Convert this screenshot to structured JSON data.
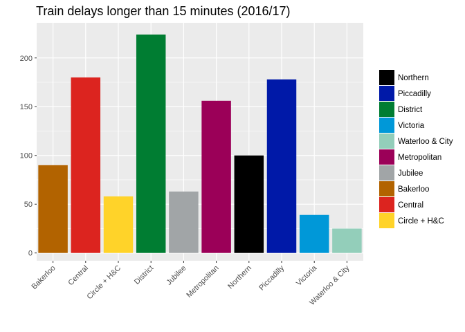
{
  "chart_data": {
    "type": "bar",
    "title": "Train delays longer than 15 minutes (2016/17)",
    "xlabel": "",
    "ylabel": "",
    "ylim": [
      -8,
      236
    ],
    "yticks": [
      0,
      50,
      100,
      150,
      200
    ],
    "grid": true,
    "legend_position": "right",
    "categories": [
      "Bakerloo",
      "Central",
      "Circle + H&C",
      "District",
      "Jubilee",
      "Metropolitan",
      "Northern",
      "Piccadilly",
      "Victoria",
      "Waterloo & City"
    ],
    "values": [
      90,
      180,
      58,
      224,
      63,
      156,
      100,
      178,
      39,
      25
    ],
    "colors": {
      "Bakerloo": "#B26300",
      "Central": "#DC241F",
      "Circle + H&C": "#FFD329",
      "District": "#007D32",
      "Jubilee": "#A1A5A7",
      "Metropolitan": "#9B0058",
      "Northern": "#000000",
      "Piccadilly": "#0019A8",
      "Victoria": "#0098D8",
      "Waterloo & City": "#93CEBA"
    },
    "legend": [
      "Northern",
      "Piccadilly",
      "District",
      "Victoria",
      "Waterloo & City",
      "Metropolitan",
      "Jubilee",
      "Bakerloo",
      "Central",
      "Circle + H&C"
    ]
  }
}
